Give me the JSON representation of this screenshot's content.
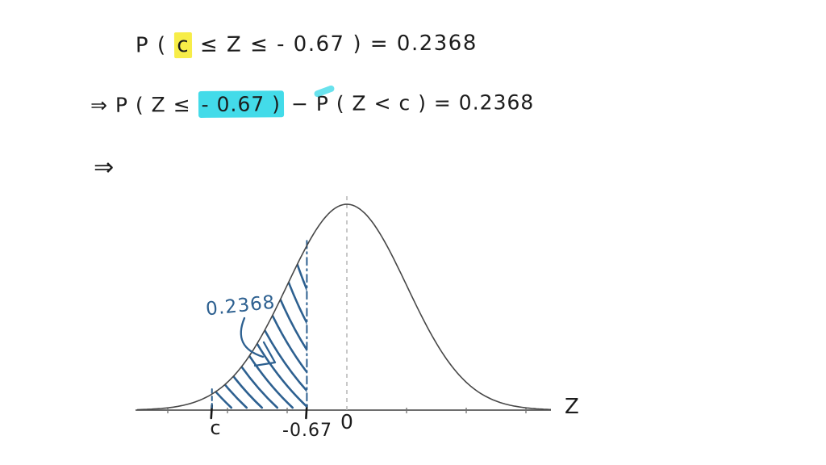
{
  "equations": {
    "line1": {
      "full": "P ( c ≤ Z ≤ - 0.67 ) = 0.2368",
      "segments": [
        {
          "text": "P ( ",
          "highlight": "none"
        },
        {
          "text": "c",
          "highlight": "yellow"
        },
        {
          "text": " ≤ Z ≤ - 0.67 ) = 0.2368",
          "highlight": "none"
        }
      ]
    },
    "line2": {
      "full": "⇒ P ( Z ≤ - 0.67 ) − P ( Z < c ) = 0.2368",
      "segments": [
        {
          "text": "⇒ P ( Z ≤ ",
          "highlight": "none"
        },
        {
          "text": "- 0.67 )",
          "highlight": "cyan"
        },
        {
          "text": " − P ( Z < c ) = 0.2368",
          "highlight": "none"
        }
      ]
    },
    "line3": {
      "text": "⇒"
    }
  },
  "colors": {
    "ink": "#1c1c1c",
    "blue_ink": "#2d6090",
    "curve_gray": "#474747",
    "center_dash_gray": "#b5b5b5",
    "highlight_yellow": "#f7ed48",
    "highlight_cyan": "#43dbe9"
  },
  "chart_data": {
    "type": "area",
    "title": "Standard normal curve sketch with shaded lower region",
    "x_axis_label": "Z",
    "mean": 0,
    "sd": 1,
    "x_range_sigma": [
      -3.5,
      3.4
    ],
    "grid": false,
    "shaded_region": {
      "from_label": "c",
      "from_z": -2.26,
      "to_z": -0.67,
      "area_label": "0.2368",
      "style": "blue diagonal hatch"
    },
    "reference_lines": [
      {
        "z": 0,
        "style": "gray-dashed"
      },
      {
        "z": -0.67,
        "style": "blue-dash-dot"
      },
      {
        "z": -2.26,
        "style": "blue-dashed-short"
      }
    ],
    "tick_labels": [
      {
        "label": "c",
        "z": -2.26
      },
      {
        "label": "-0.67",
        "z": -0.67
      },
      {
        "label": "0",
        "z": 0
      }
    ],
    "minor_ticks_z": [
      -3,
      -2,
      -1,
      1,
      2,
      3
    ]
  }
}
